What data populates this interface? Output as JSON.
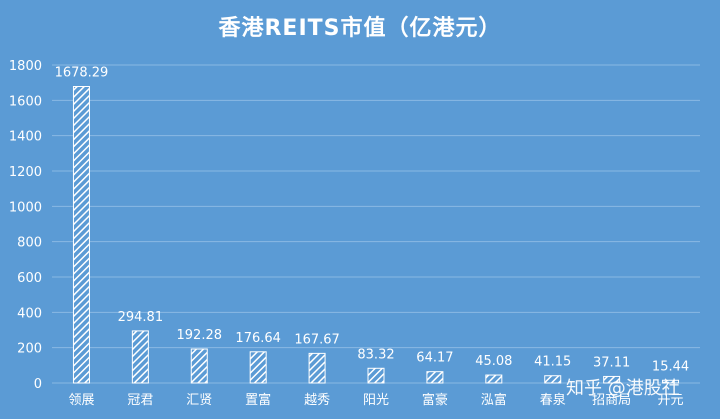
{
  "chart_data": {
    "type": "bar",
    "title": "香港REITS市值（亿港元）",
    "categories": [
      "领展",
      "冠君",
      "汇贤",
      "置富",
      "越秀",
      "阳光",
      "富豪",
      "泓富",
      "春泉",
      "招商局",
      "开元"
    ],
    "values": [
      1678.29,
      294.81,
      192.28,
      176.64,
      167.67,
      83.32,
      64.17,
      45.08,
      41.15,
      37.11,
      15.44
    ],
    "value_labels": [
      "1678.29",
      "294.81",
      "192.28",
      "176.64",
      "167.67",
      "83.32",
      "64.17",
      "45.08",
      "41.15",
      "37.11",
      "15.44"
    ],
    "ylim": [
      0,
      1800
    ],
    "yticks": [
      "0",
      "200",
      "400",
      "600",
      "800",
      "1000",
      "1200",
      "1400",
      "1600",
      "1800"
    ],
    "xlabel": "",
    "ylabel": "",
    "grid": true,
    "legend": "none",
    "bar_pattern": "diagonal-hatch",
    "colors": {
      "background": "#5b9bd5",
      "bar": "#ffffff",
      "text": "#ffffff",
      "grid": "#8ab9e3"
    }
  },
  "watermark": "知乎 @港股社"
}
